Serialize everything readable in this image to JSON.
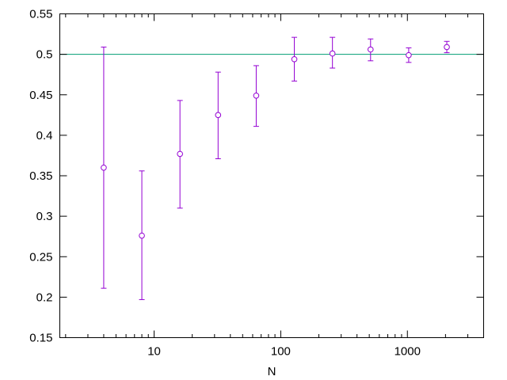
{
  "chart_data": {
    "type": "scatter",
    "title": "",
    "xlabel": "N",
    "ylabel": "",
    "xscale": "log",
    "xlim": [
      1.8,
      4000
    ],
    "ylim": [
      0.15,
      0.55
    ],
    "xticks": [
      10,
      100,
      1000
    ],
    "yticks": [
      0.15,
      0.2,
      0.25,
      0.3,
      0.35,
      0.4,
      0.45,
      0.5,
      0.55
    ],
    "x_tick_labels": [
      "10",
      "100",
      "1000"
    ],
    "y_tick_labels": [
      "0.15",
      "0.2",
      "0.25",
      "0.3",
      "0.35",
      "0.4",
      "0.45",
      "0.5",
      "0.55"
    ],
    "grid": false,
    "reference_line": {
      "y": 0.5,
      "color": "#009e73"
    },
    "marker_color": "#9400d3",
    "series": [
      {
        "marker": "open-circle",
        "error_bars": true,
        "points": [
          {
            "x": 4,
            "y": 0.36,
            "ylow": 0.211,
            "yhigh": 0.509
          },
          {
            "x": 8,
            "y": 0.276,
            "ylow": 0.197,
            "yhigh": 0.356
          },
          {
            "x": 16,
            "y": 0.377,
            "ylow": 0.31,
            "yhigh": 0.443
          },
          {
            "x": 32,
            "y": 0.425,
            "ylow": 0.371,
            "yhigh": 0.478
          },
          {
            "x": 64,
            "y": 0.449,
            "ylow": 0.411,
            "yhigh": 0.486
          },
          {
            "x": 128,
            "y": 0.494,
            "ylow": 0.467,
            "yhigh": 0.521
          },
          {
            "x": 256,
            "y": 0.501,
            "ylow": 0.483,
            "yhigh": 0.521
          },
          {
            "x": 512,
            "y": 0.506,
            "ylow": 0.492,
            "yhigh": 0.519
          },
          {
            "x": 1024,
            "y": 0.499,
            "ylow": 0.49,
            "yhigh": 0.508
          },
          {
            "x": 2048,
            "y": 0.509,
            "ylow": 0.502,
            "yhigh": 0.516
          }
        ]
      }
    ]
  }
}
